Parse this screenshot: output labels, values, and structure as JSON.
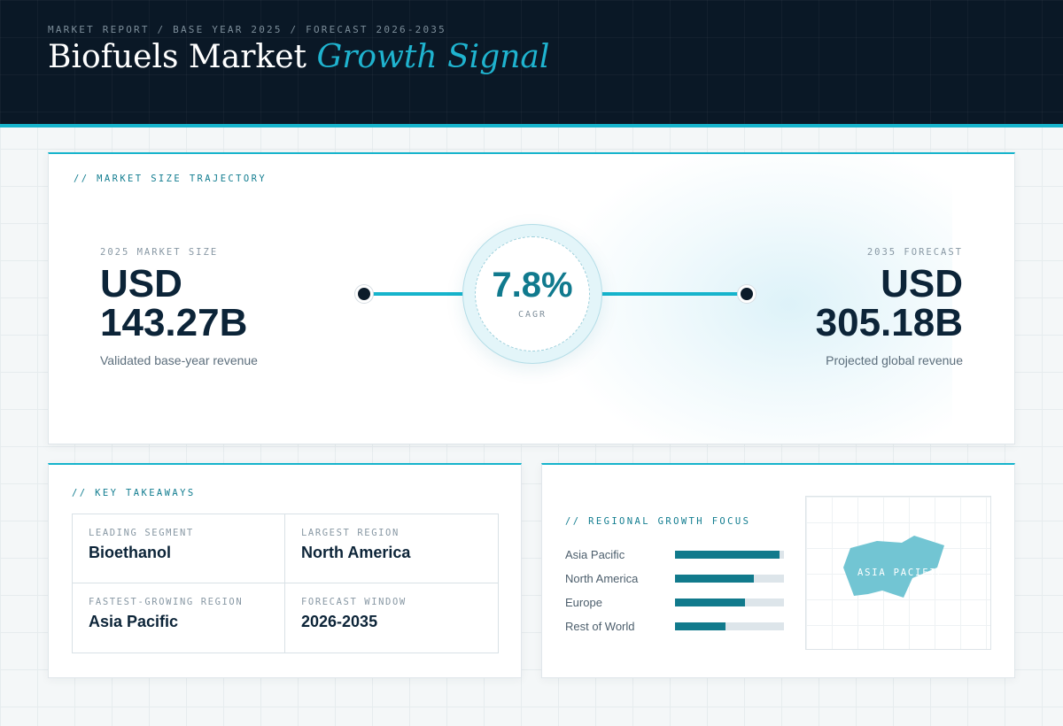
{
  "header": {
    "eyebrow": "MARKET REPORT / BASE YEAR 2025 / FORECAST 2026-2035",
    "title_main": "Biofuels Market",
    "title_accent": "Growth Signal"
  },
  "trajectory": {
    "section_label": "// MARKET SIZE TRAJECTORY",
    "start": {
      "label": "2025 MARKET SIZE",
      "currency": "USD",
      "amount": "143.27B",
      "caption": "Validated base-year revenue"
    },
    "cagr": {
      "value": "7.8%",
      "label": "CAGR"
    },
    "end": {
      "label": "2035 FORECAST",
      "currency": "USD",
      "amount": "305.18B",
      "caption": "Projected global revenue"
    }
  },
  "takeaways": {
    "section_label": "// KEY TAKEAWAYS",
    "items": [
      {
        "label": "LEADING SEGMENT",
        "value": "Bioethanol"
      },
      {
        "label": "LARGEST REGION",
        "value": "North America"
      },
      {
        "label": "FASTEST-GROWING REGION",
        "value": "Asia Pacific"
      },
      {
        "label": "FORECAST WINDOW",
        "value": "2026-2035"
      }
    ]
  },
  "regional": {
    "section_label": "// REGIONAL GROWTH FOCUS",
    "bars": [
      {
        "name": "Asia Pacific",
        "fraction": 0.96
      },
      {
        "name": "North America",
        "fraction": 0.72
      },
      {
        "name": "Europe",
        "fraction": 0.64
      },
      {
        "name": "Rest of World",
        "fraction": 0.46
      }
    ],
    "map_label": "ASIA PACIFIC",
    "map_color": "#72c5d3"
  },
  "colors": {
    "accent": "#16b4cc",
    "bar_fill": "#117a8c",
    "navy": "#0a1826"
  }
}
